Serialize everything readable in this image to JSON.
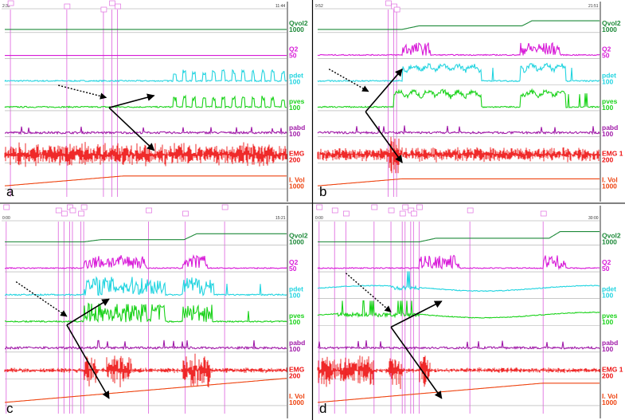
{
  "chart_data": [
    {
      "type": "line",
      "panel_label": "a",
      "time_labels": [
        "2:32",
        "11:44"
      ],
      "channels": [
        {
          "name": "Qvol2",
          "scale": "1000",
          "color": "#1e8a3a",
          "kind": "flat",
          "level": 0.2
        },
        {
          "name": "Q2",
          "scale": "50",
          "color": "#d81bd8",
          "kind": "flat",
          "level": 0.08
        },
        {
          "name": "pdet",
          "scale": "100",
          "color": "#22d4e0",
          "kind": "bursts",
          "start": 0.58,
          "amp": 0.45
        },
        {
          "name": "pves",
          "scale": "100",
          "color": "#1ad21a",
          "kind": "bursts",
          "start": 0.58,
          "amp": 0.45
        },
        {
          "name": "pabd",
          "scale": "100",
          "color": "#a01aa8",
          "kind": "low",
          "amp": 0.2
        },
        {
          "name": "EMG",
          "scale": "200",
          "color": "#ee1111",
          "kind": "emg-dense"
        },
        {
          "name": "I. Vol",
          "scale": "1000",
          "color": "#ee4411",
          "kind": "ramp",
          "end": 0.42
        }
      ],
      "events": [
        0.02,
        0.22,
        0.35,
        0.38,
        0.4
      ],
      "dotted_arrow": {
        "from": [
          0.19,
          0.42
        ],
        "to": [
          0.36,
          0.48
        ]
      },
      "solid_arrows": {
        "vertex": [
          0.37,
          0.53
        ],
        "tips": [
          [
            0.53,
            0.47
          ],
          [
            0.53,
            0.74
          ]
        ]
      }
    },
    {
      "type": "line",
      "panel_label": "b",
      "time_labels": [
        "9:52",
        "21:51"
      ],
      "channels": [
        {
          "name": "Qvol2",
          "scale": "1000",
          "color": "#1e8a3a",
          "kind": "steps",
          "steps": [
            [
              0.3,
              0.25
            ],
            [
              0.7,
              0.6
            ]
          ]
        },
        {
          "name": "Q2",
          "scale": "50",
          "color": "#d81bd8",
          "kind": "spikes",
          "spans": [
            [
              0.3,
              0.4
            ],
            [
              0.72,
              0.86
            ]
          ]
        },
        {
          "name": "pdet",
          "scale": "100",
          "color": "#22d4e0",
          "kind": "humps",
          "spans": [
            [
              0.3,
              0.58
            ],
            [
              0.72,
              0.88
            ]
          ],
          "amp": 0.7
        },
        {
          "name": "pves",
          "scale": "100",
          "color": "#1ad21a",
          "kind": "humps",
          "spans": [
            [
              0.27,
              0.58
            ],
            [
              0.72,
              0.88
            ]
          ],
          "amp": 0.7
        },
        {
          "name": "pabd",
          "scale": "100",
          "color": "#a01aa8",
          "kind": "low",
          "amp": 0.25
        },
        {
          "name": "EMG 1",
          "scale": "200",
          "color": "#ee1111",
          "kind": "emg-burst",
          "burst": 0.27
        },
        {
          "name": "I. Vol",
          "scale": "1000",
          "color": "#ee4411",
          "kind": "ramp",
          "end": 0.3
        }
      ],
      "events": [
        0.25,
        0.27,
        0.28
      ],
      "dotted_arrow": {
        "from": [
          0.04,
          0.34
        ],
        "to": [
          0.18,
          0.45
        ]
      },
      "solid_arrows": {
        "vertex": [
          0.17,
          0.55
        ],
        "tips": [
          [
            0.3,
            0.34
          ],
          [
            0.3,
            0.8
          ]
        ]
      }
    },
    {
      "type": "line",
      "panel_label": "c",
      "time_labels": [
        "0:00",
        "15:21"
      ],
      "channels": [
        {
          "name": "Qvol2",
          "scale": "1000",
          "color": "#1e8a3a",
          "kind": "steps",
          "steps": [
            [
              0.28,
              0.15
            ],
            [
              0.62,
              0.55
            ]
          ]
        },
        {
          "name": "Q2",
          "scale": "50",
          "color": "#d81bd8",
          "kind": "spikes",
          "spans": [
            [
              0.28,
              0.5
            ],
            [
              0.63,
              0.72
            ]
          ]
        },
        {
          "name": "pdet",
          "scale": "100",
          "color": "#22d4e0",
          "kind": "dense",
          "spans": [
            [
              0.28,
              0.57
            ],
            [
              0.63,
              0.74
            ]
          ],
          "amp": 0.7
        },
        {
          "name": "pves",
          "scale": "100",
          "color": "#1ad21a",
          "kind": "dense",
          "spans": [
            [
              0.28,
              0.57
            ],
            [
              0.63,
              0.74
            ]
          ],
          "amp": 0.7
        },
        {
          "name": "pabd",
          "scale": "100",
          "color": "#a01aa8",
          "kind": "low",
          "amp": 0.25
        },
        {
          "name": "EMG",
          "scale": "200",
          "color": "#ee1111",
          "kind": "emg-bursts",
          "spans": [
            [
              0.28,
              0.33
            ],
            [
              0.36,
              0.45
            ],
            [
              0.63,
              0.73
            ]
          ]
        },
        {
          "name": "I. Vol",
          "scale": "1000",
          "color": "#ee4411",
          "kind": "ramp",
          "end": 1.0
        }
      ],
      "events": [
        0.005,
        0.19,
        0.21,
        0.23,
        0.24,
        0.27,
        0.28,
        0.51,
        0.64,
        0.78
      ],
      "dotted_arrow": {
        "from": [
          0.04,
          0.36
        ],
        "to": [
          0.22,
          0.52
        ]
      },
      "solid_arrows": {
        "vertex": [
          0.22,
          0.56
        ],
        "tips": [
          [
            0.37,
            0.44
          ],
          [
            0.37,
            0.9
          ]
        ]
      }
    },
    {
      "type": "line",
      "panel_label": "d",
      "time_labels": [
        "0:00",
        "30:00"
      ],
      "channels": [
        {
          "name": "Qvol2",
          "scale": "1000",
          "color": "#1e8a3a",
          "kind": "steps",
          "steps": [
            [
              0.36,
              0.25
            ],
            [
              0.8,
              0.7
            ]
          ]
        },
        {
          "name": "Q2",
          "scale": "50",
          "color": "#d81bd8",
          "kind": "spikes",
          "spans": [
            [
              0.36,
              0.5
            ],
            [
              0.8,
              0.88
            ]
          ]
        },
        {
          "name": "pdet",
          "scale": "100",
          "color": "#22d4e0",
          "kind": "tall",
          "spans": [
            [
              0.26,
              0.36
            ]
          ],
          "amp": 0.9
        },
        {
          "name": "pves",
          "scale": "100",
          "color": "#1ad21a",
          "kind": "tall",
          "spans": [
            [
              0.07,
              0.36
            ]
          ],
          "amp": 0.8
        },
        {
          "name": "pabd",
          "scale": "100",
          "color": "#a01aa8",
          "kind": "low",
          "amp": 0.25
        },
        {
          "name": "EMG 1",
          "scale": "200",
          "color": "#ee1111",
          "kind": "emg-bursts",
          "spans": [
            [
              0.0,
              0.2
            ],
            [
              0.25,
              0.3
            ],
            [
              0.36,
              0.4
            ]
          ]
        },
        {
          "name": "I. Vol",
          "scale": "1000",
          "color": "#ee4411",
          "kind": "ramp",
          "end": 0.8
        }
      ],
      "events": [
        0.005,
        0.06,
        0.1,
        0.2,
        0.26,
        0.3,
        0.31,
        0.33,
        0.34,
        0.36,
        0.54,
        0.8
      ],
      "dotted_arrow": {
        "from": [
          0.1,
          0.32
        ],
        "to": [
          0.26,
          0.5
        ]
      },
      "solid_arrows": {
        "vertex": [
          0.26,
          0.57
        ],
        "tips": [
          [
            0.44,
            0.45
          ],
          [
            0.44,
            0.9
          ]
        ]
      }
    }
  ]
}
